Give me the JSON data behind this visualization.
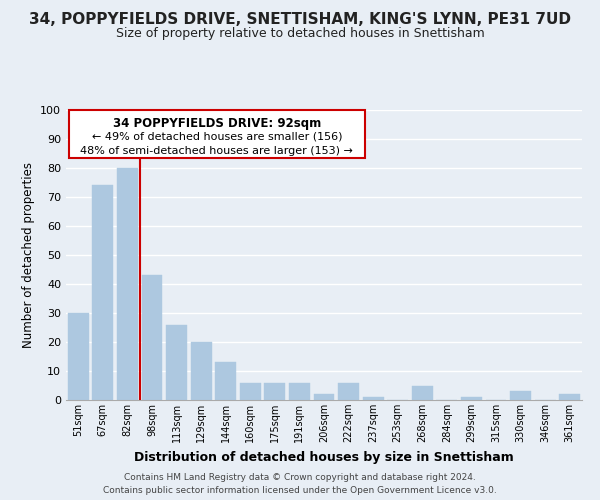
{
  "title": "34, POPPYFIELDS DRIVE, SNETTISHAM, KING'S LYNN, PE31 7UD",
  "subtitle": "Size of property relative to detached houses in Snettisham",
  "xlabel": "Distribution of detached houses by size in Snettisham",
  "ylabel": "Number of detached properties",
  "bar_labels": [
    "51sqm",
    "67sqm",
    "82sqm",
    "98sqm",
    "113sqm",
    "129sqm",
    "144sqm",
    "160sqm",
    "175sqm",
    "191sqm",
    "206sqm",
    "222sqm",
    "237sqm",
    "253sqm",
    "268sqm",
    "284sqm",
    "299sqm",
    "315sqm",
    "330sqm",
    "346sqm",
    "361sqm"
  ],
  "bar_values": [
    30,
    74,
    80,
    43,
    26,
    20,
    13,
    6,
    6,
    6,
    2,
    6,
    1,
    0,
    5,
    0,
    1,
    0,
    3,
    0,
    2
  ],
  "bar_color": "#adc8e0",
  "vline_color": "#cc0000",
  "vline_pos": 2.5,
  "annotation_title": "34 POPPYFIELDS DRIVE: 92sqm",
  "annotation_line1": "← 49% of detached houses are smaller (156)",
  "annotation_line2": "48% of semi-detached houses are larger (153) →",
  "ylim": [
    0,
    100
  ],
  "footer1": "Contains HM Land Registry data © Crown copyright and database right 2024.",
  "footer2": "Contains public sector information licensed under the Open Government Licence v3.0.",
  "bg_color": "#e8eef5",
  "grid_color": "#ffffff",
  "title_fontsize": 11,
  "subtitle_fontsize": 9
}
